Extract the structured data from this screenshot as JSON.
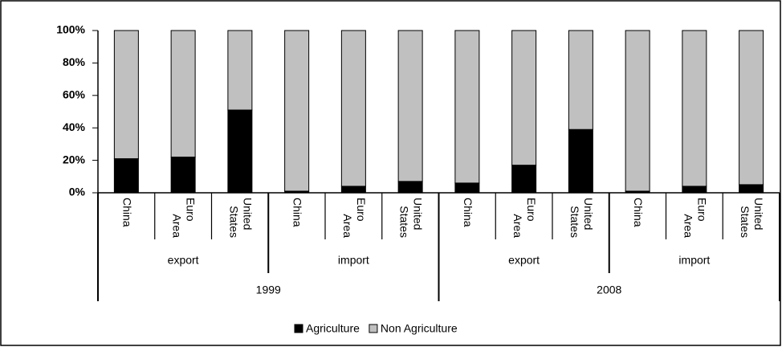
{
  "chart_data": {
    "type": "stacked_bar",
    "categories": [
      "China",
      "Euro Area",
      "United States",
      "China",
      "Euro Area",
      "United States",
      "China",
      "Euro Area",
      "United States",
      "China",
      "Euro Area",
      "United States"
    ],
    "group_labels": [
      "export",
      "import",
      "export",
      "import"
    ],
    "year_labels": [
      "1999",
      "2008"
    ],
    "series": [
      {
        "name": "Agriculture",
        "color": "#000000",
        "values": [
          21,
          22,
          51,
          1,
          4,
          7,
          6,
          17,
          39,
          1,
          4,
          5
        ]
      },
      {
        "name": "Non Agriculture",
        "color": "#c0c0c0",
        "values": [
          79,
          78,
          49,
          99,
          96,
          93,
          94,
          83,
          61,
          99,
          96,
          95
        ]
      }
    ],
    "ylim": [
      0,
      100
    ],
    "yticks": [
      {
        "value": 0,
        "label": "0%"
      },
      {
        "value": 20,
        "label": "20%"
      },
      {
        "value": 40,
        "label": "40%"
      },
      {
        "value": 60,
        "label": "60%"
      },
      {
        "value": 80,
        "label": "80%"
      },
      {
        "value": 100,
        "label": "100%"
      }
    ]
  }
}
